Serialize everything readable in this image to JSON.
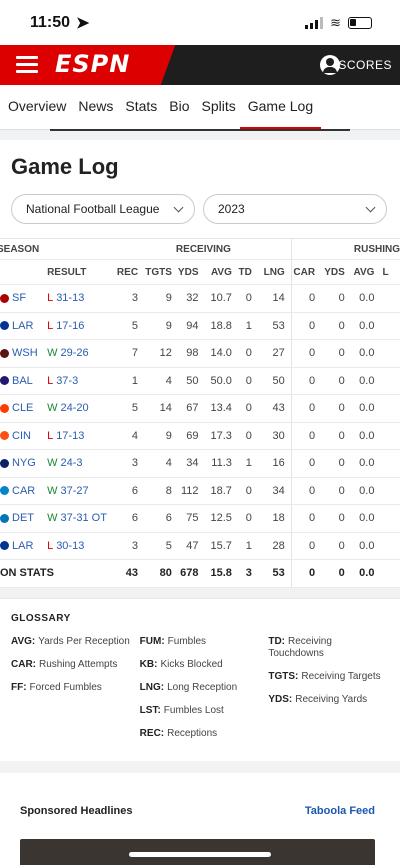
{
  "status": {
    "time": "11:50"
  },
  "header": {
    "logo": "ESPN",
    "scores_label": "SCORES"
  },
  "tabs": [
    "Overview",
    "News",
    "Stats",
    "Bio",
    "Splits",
    "Game Log"
  ],
  "active_tab": "Game Log",
  "gamelog": {
    "title": "Game Log",
    "league_select": "National Football League",
    "season_select": "2023",
    "group_headers": {
      "season": "SEASON",
      "receiving": "RECEIVING",
      "rushing": "RUSHING"
    },
    "columns": {
      "result": "RESULT",
      "rec": "REC",
      "tgts": "TGTS",
      "yds": "YDS",
      "avg": "AVG",
      "td": "TD",
      "lng": "LNG",
      "car": "CAR",
      "rush_yds": "YDS",
      "rush_avg": "AVG",
      "rush_l": "L"
    },
    "rows": [
      {
        "team": "SF",
        "logo_color": "#aa0000",
        "wl": "L",
        "score": "31-13",
        "rec": "3",
        "tgts": "9",
        "yds": "32",
        "avg": "10.7",
        "td": "0",
        "lng": "14",
        "car": "0",
        "ryds": "0",
        "ravg": "0.0"
      },
      {
        "team": "LAR",
        "logo_color": "#003594",
        "wl": "L",
        "score": "17-16",
        "rec": "5",
        "tgts": "9",
        "yds": "94",
        "avg": "18.8",
        "td": "1",
        "lng": "53",
        "car": "0",
        "ryds": "0",
        "ravg": "0.0"
      },
      {
        "team": "WSH",
        "logo_color": "#5a1414",
        "wl": "W",
        "score": "29-26",
        "rec": "7",
        "tgts": "12",
        "yds": "98",
        "avg": "14.0",
        "td": "0",
        "lng": "27",
        "car": "0",
        "ryds": "0",
        "ravg": "0.0"
      },
      {
        "team": "BAL",
        "logo_color": "#241773",
        "wl": "L",
        "score": "37-3",
        "rec": "1",
        "tgts": "4",
        "yds": "50",
        "avg": "50.0",
        "td": "0",
        "lng": "50",
        "car": "0",
        "ryds": "0",
        "ravg": "0.0"
      },
      {
        "team": "CLE",
        "logo_color": "#ff3c00",
        "wl": "W",
        "score": "24-20",
        "rec": "5",
        "tgts": "14",
        "yds": "67",
        "avg": "13.4",
        "td": "0",
        "lng": "43",
        "car": "0",
        "ryds": "0",
        "ravg": "0.0"
      },
      {
        "team": "CIN",
        "logo_color": "#fb4f14",
        "wl": "L",
        "score": "17-13",
        "rec": "4",
        "tgts": "9",
        "yds": "69",
        "avg": "17.3",
        "td": "0",
        "lng": "30",
        "car": "0",
        "ryds": "0",
        "ravg": "0.0"
      },
      {
        "team": "NYG",
        "logo_color": "#0b2265",
        "wl": "W",
        "score": "24-3",
        "rec": "3",
        "tgts": "4",
        "yds": "34",
        "avg": "11.3",
        "td": "1",
        "lng": "16",
        "car": "0",
        "ryds": "0",
        "ravg": "0.0"
      },
      {
        "team": "CAR",
        "logo_color": "#0085ca",
        "wl": "W",
        "score": "37-27",
        "rec": "6",
        "tgts": "8",
        "yds": "112",
        "avg": "18.7",
        "td": "0",
        "lng": "34",
        "car": "0",
        "ryds": "0",
        "ravg": "0.0"
      },
      {
        "team": "DET",
        "logo_color": "#0076b6",
        "wl": "W",
        "score": "37-31 OT",
        "rec": "6",
        "tgts": "6",
        "yds": "75",
        "avg": "12.5",
        "td": "0",
        "lng": "18",
        "car": "0",
        "ryds": "0",
        "ravg": "0.0"
      },
      {
        "team": "LAR",
        "logo_color": "#003594",
        "wl": "L",
        "score": "30-13",
        "rec": "3",
        "tgts": "5",
        "yds": "47",
        "avg": "15.7",
        "td": "1",
        "lng": "28",
        "car": "0",
        "ryds": "0",
        "ravg": "0.0"
      }
    ],
    "totals": {
      "label": "ON STATS",
      "rec": "43",
      "tgts": "80",
      "yds": "678",
      "avg": "15.8",
      "td": "3",
      "lng": "53",
      "car": "0",
      "ryds": "0",
      "ravg": "0.0"
    }
  },
  "glossary": {
    "title": "GLOSSARY",
    "col1": [
      {
        "abbr": "AVG:",
        "text": "Yards Per Reception"
      },
      {
        "abbr": "CAR:",
        "text": "Rushing Attempts"
      },
      {
        "abbr": "FF:",
        "text": "Forced Fumbles"
      }
    ],
    "col2": [
      {
        "abbr": "FUM:",
        "text": "Fumbles"
      },
      {
        "abbr": "KB:",
        "text": "Kicks Blocked"
      },
      {
        "abbr": "LNG:",
        "text": "Long Reception"
      },
      {
        "abbr": "LST:",
        "text": "Fumbles Lost"
      },
      {
        "abbr": "REC:",
        "text": "Receptions"
      }
    ],
    "col3": [
      {
        "abbr": "TD:",
        "text": "Receiving Touchdowns"
      },
      {
        "abbr": "TGTS:",
        "text": "Receiving Targets"
      },
      {
        "abbr": "YDS:",
        "text": "Receiving Yards"
      }
    ]
  },
  "sponsored": {
    "title": "Sponsored Headlines",
    "brand": "Taboola Feed"
  }
}
